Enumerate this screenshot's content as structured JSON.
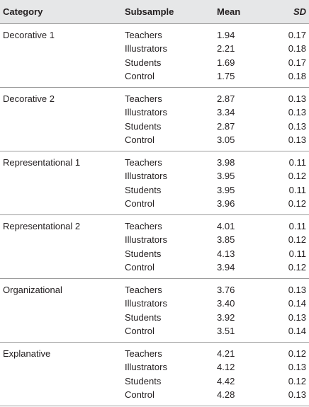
{
  "table": {
    "header": [
      "Category",
      "Subsample",
      "Mean",
      "SD"
    ],
    "groups": [
      {
        "category": "Decorative 1",
        "rows": [
          [
            "Teachers",
            "1.94",
            "0.17"
          ],
          [
            "Illustrators",
            "2.21",
            "0.18"
          ],
          [
            "Students",
            "1.69",
            "0.17"
          ],
          [
            "Control",
            "1.75",
            "0.18"
          ]
        ]
      },
      {
        "category": "Decorative 2",
        "rows": [
          [
            "Teachers",
            "2.87",
            "0.13"
          ],
          [
            "Illustrators",
            "3.34",
            "0.13"
          ],
          [
            "Students",
            "2.87",
            "0.13"
          ],
          [
            "Control",
            "3.05",
            "0.13"
          ]
        ]
      },
      {
        "category": "Representational 1",
        "rows": [
          [
            "Teachers",
            "3.98",
            "0.11"
          ],
          [
            "Illustrators",
            "3.95",
            "0.12"
          ],
          [
            "Students",
            "3.95",
            "0.11"
          ],
          [
            "Control",
            "3.96",
            "0.12"
          ]
        ]
      },
      {
        "category": "Representational 2",
        "rows": [
          [
            "Teachers",
            "4.01",
            "0.11"
          ],
          [
            "Illustrators",
            "3.85",
            "0.12"
          ],
          [
            "Students",
            "4.13",
            "0.11"
          ],
          [
            "Control",
            "3.94",
            "0.12"
          ]
        ]
      },
      {
        "category": "Organizational",
        "rows": [
          [
            "Teachers",
            "3.76",
            "0.13"
          ],
          [
            "Illustrators",
            "3.40",
            "0.14"
          ],
          [
            "Students",
            "3.92",
            "0.13"
          ],
          [
            "Control",
            "3.51",
            "0.14"
          ]
        ]
      },
      {
        "category": "Explanative",
        "rows": [
          [
            "Teachers",
            "4.21",
            "0.12"
          ],
          [
            "Illustrators",
            "4.12",
            "0.13"
          ],
          [
            "Students",
            "4.42",
            "0.12"
          ],
          [
            "Control",
            "4.28",
            "0.13"
          ]
        ]
      }
    ]
  }
}
